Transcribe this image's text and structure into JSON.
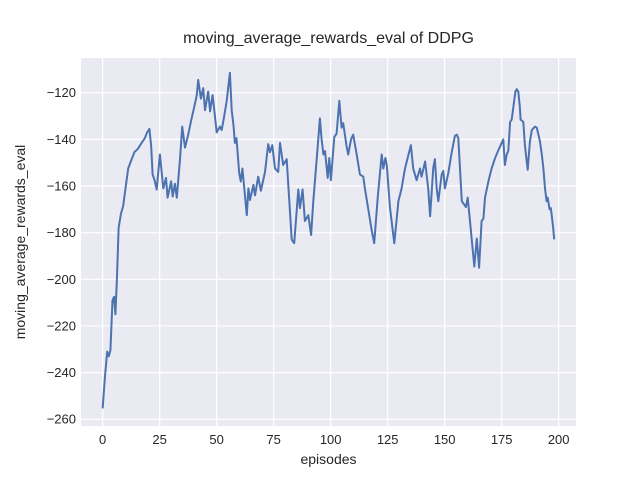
{
  "chart_data": {
    "type": "line",
    "title": "moving_average_rewards_eval of DDPG",
    "xlabel": "episodes",
    "ylabel": "moving_average_rewards_eval",
    "x_ticks": [
      0,
      25,
      50,
      75,
      100,
      125,
      150,
      175,
      200
    ],
    "y_ticks": [
      -260,
      -240,
      -220,
      -200,
      -180,
      -160,
      -140,
      -120
    ],
    "xlim": [
      -9.5,
      207.6
    ],
    "ylim": [
      -262.9,
      -105.1
    ],
    "grid": true,
    "legend": false,
    "line_color": "#4C72B0",
    "plot_bg_color": "#EAEAF2",
    "gridline_color": "#FFFFFF",
    "tick_text_color": "#262626",
    "series": [
      {
        "name": "moving_average_rewards_eval",
        "points": [
          [
            0,
            -255
          ],
          [
            1,
            -242
          ],
          [
            2,
            -231
          ],
          [
            2.7,
            -233
          ],
          [
            3.4,
            -230.5
          ],
          [
            4.3,
            -209
          ],
          [
            5,
            -207.5
          ],
          [
            5.6,
            -215
          ],
          [
            6.3,
            -199
          ],
          [
            7,
            -178
          ],
          [
            8,
            -172
          ],
          [
            9,
            -168.5
          ],
          [
            10,
            -161
          ],
          [
            11.2,
            -152.5
          ],
          [
            12.5,
            -149
          ],
          [
            13.9,
            -145.5
          ],
          [
            15.5,
            -144
          ],
          [
            17.1,
            -141.5
          ],
          [
            18.5,
            -139.5
          ],
          [
            19.5,
            -137
          ],
          [
            20.5,
            -135.5
          ],
          [
            21.3,
            -143
          ],
          [
            21.9,
            -155
          ],
          [
            22.8,
            -157.5
          ],
          [
            23.7,
            -161.5
          ],
          [
            25.1,
            -146.5
          ],
          [
            26.6,
            -161
          ],
          [
            27.8,
            -156.5
          ],
          [
            28.5,
            -165
          ],
          [
            30,
            -158
          ],
          [
            30.7,
            -164.5
          ],
          [
            31.7,
            -159
          ],
          [
            32.5,
            -165
          ],
          [
            33.9,
            -148.5
          ],
          [
            34.9,
            -134.5
          ],
          [
            36.1,
            -143.5
          ],
          [
            37.5,
            -138
          ],
          [
            38.8,
            -132
          ],
          [
            40.2,
            -126
          ],
          [
            41.3,
            -121
          ],
          [
            41.9,
            -114.5
          ],
          [
            43.1,
            -122.5
          ],
          [
            44.1,
            -118
          ],
          [
            44.9,
            -127.5
          ],
          [
            46.3,
            -119.5
          ],
          [
            47.1,
            -128
          ],
          [
            48.2,
            -121
          ],
          [
            50,
            -137
          ],
          [
            51.4,
            -134.5
          ],
          [
            52.2,
            -136
          ],
          [
            53.3,
            -130
          ],
          [
            54.4,
            -123.5
          ],
          [
            55.8,
            -111.5
          ],
          [
            56.6,
            -127.5
          ],
          [
            57.4,
            -134
          ],
          [
            58,
            -141.5
          ],
          [
            58.7,
            -139.5
          ],
          [
            59.9,
            -154.5
          ],
          [
            60.6,
            -158
          ],
          [
            61.3,
            -152.5
          ],
          [
            63.2,
            -172.5
          ],
          [
            63.9,
            -161
          ],
          [
            64.6,
            -166
          ],
          [
            66.1,
            -159.5
          ],
          [
            66.8,
            -164
          ],
          [
            68.2,
            -156
          ],
          [
            69.4,
            -162
          ],
          [
            71.2,
            -154
          ],
          [
            72.6,
            -142
          ],
          [
            73.4,
            -145.5
          ],
          [
            74.4,
            -142.5
          ],
          [
            75.6,
            -152.5
          ],
          [
            77,
            -154
          ],
          [
            77.8,
            -141.5
          ],
          [
            79.2,
            -151
          ],
          [
            80.7,
            -148.5
          ],
          [
            82.9,
            -183
          ],
          [
            84,
            -184.5
          ],
          [
            85.8,
            -161.5
          ],
          [
            86.5,
            -169.5
          ],
          [
            87.7,
            -161.5
          ],
          [
            88.7,
            -175
          ],
          [
            90.2,
            -172.5
          ],
          [
            91.4,
            -181
          ],
          [
            92.4,
            -166.5
          ],
          [
            93.9,
            -148
          ],
          [
            95.3,
            -131
          ],
          [
            96,
            -139.5
          ],
          [
            96.8,
            -146.5
          ],
          [
            97.5,
            -145
          ],
          [
            98.7,
            -156.5
          ],
          [
            99.4,
            -148
          ],
          [
            100.1,
            -157.5
          ],
          [
            101.6,
            -139
          ],
          [
            102.6,
            -137.5
          ],
          [
            103.8,
            -123.5
          ],
          [
            104.8,
            -135
          ],
          [
            105.5,
            -133
          ],
          [
            107,
            -143
          ],
          [
            107.7,
            -146.5
          ],
          [
            108.9,
            -140
          ],
          [
            109.9,
            -138
          ],
          [
            111.4,
            -146.5
          ],
          [
            112.8,
            -155
          ],
          [
            114.3,
            -156
          ],
          [
            115,
            -161
          ],
          [
            116.5,
            -170
          ],
          [
            118,
            -179
          ],
          [
            119.1,
            -184.5
          ],
          [
            120.7,
            -164
          ],
          [
            122.4,
            -146.5
          ],
          [
            123.1,
            -152.5
          ],
          [
            124,
            -148
          ],
          [
            124.6,
            -151
          ],
          [
            126,
            -169
          ],
          [
            127.9,
            -184.5
          ],
          [
            129.7,
            -166.5
          ],
          [
            131.1,
            -161
          ],
          [
            132.6,
            -152.5
          ],
          [
            134,
            -147
          ],
          [
            135.2,
            -142.5
          ],
          [
            136.2,
            -152.5
          ],
          [
            137.7,
            -157.5
          ],
          [
            139.2,
            -152.5
          ],
          [
            139.9,
            -156
          ],
          [
            141.4,
            -149.5
          ],
          [
            142.8,
            -161.5
          ],
          [
            143.6,
            -173
          ],
          [
            145,
            -152
          ],
          [
            145.7,
            -148.5
          ],
          [
            146.5,
            -161
          ],
          [
            147.2,
            -166.5
          ],
          [
            148.7,
            -155
          ],
          [
            149.4,
            -153.5
          ],
          [
            150.1,
            -161
          ],
          [
            151.6,
            -154.5
          ],
          [
            153,
            -146
          ],
          [
            154.5,
            -138.5
          ],
          [
            155.3,
            -138
          ],
          [
            156,
            -139.5
          ],
          [
            157.5,
            -166.5
          ],
          [
            158.6,
            -168
          ],
          [
            159.3,
            -169
          ],
          [
            160.1,
            -165
          ],
          [
            161.2,
            -176
          ],
          [
            163,
            -194.5
          ],
          [
            164.1,
            -182.5
          ],
          [
            165.1,
            -195
          ],
          [
            166.2,
            -175
          ],
          [
            167,
            -174
          ],
          [
            167.7,
            -165
          ],
          [
            169.2,
            -158
          ],
          [
            170.6,
            -152.5
          ],
          [
            172.1,
            -148
          ],
          [
            173.6,
            -144.5
          ],
          [
            175,
            -141.5
          ],
          [
            175.7,
            -140
          ],
          [
            176.4,
            -151
          ],
          [
            177.2,
            -146.5
          ],
          [
            177.9,
            -145
          ],
          [
            178.7,
            -132.5
          ],
          [
            179.4,
            -131.5
          ],
          [
            181,
            -119.5
          ],
          [
            181.6,
            -118.5
          ],
          [
            182.3,
            -119.5
          ],
          [
            183,
            -126.5
          ],
          [
            183.3,
            -131.5
          ],
          [
            184.5,
            -132.5
          ],
          [
            185.2,
            -142.5
          ],
          [
            186.4,
            -153
          ],
          [
            187.4,
            -141
          ],
          [
            188.2,
            -136
          ],
          [
            189.6,
            -134.5
          ],
          [
            190.4,
            -135
          ],
          [
            191.8,
            -141
          ],
          [
            192.6,
            -146.5
          ],
          [
            193.3,
            -152.5
          ],
          [
            194,
            -161
          ],
          [
            194.7,
            -166.5
          ],
          [
            195.2,
            -165
          ],
          [
            196,
            -170
          ],
          [
            196.6,
            -169.5
          ],
          [
            197.6,
            -178
          ],
          [
            198,
            -182.5
          ]
        ]
      }
    ]
  }
}
